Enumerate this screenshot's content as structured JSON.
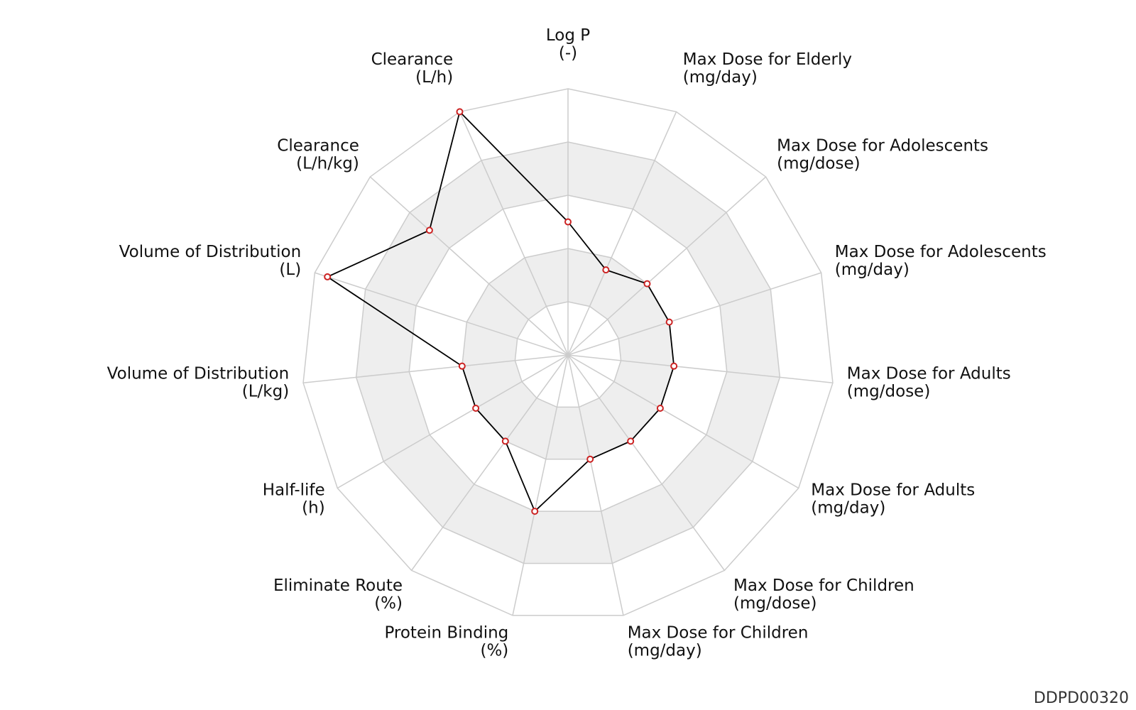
{
  "chart_data": {
    "type": "radar",
    "rings": 5,
    "band_colors": [
      "#ffffff",
      "#eeeeee"
    ],
    "grid_color": "#cccccc",
    "line_color": "#000000",
    "marker_color": "#cc2222",
    "axes": [
      {
        "name": "Log P",
        "unit": "(-)",
        "value": 0.5
      },
      {
        "name": "Max Dose for Elderly",
        "unit": "(mg/day)",
        "value": 0.35
      },
      {
        "name": "Max Dose for Adolescents",
        "unit": "(mg/dose)",
        "value": 0.4
      },
      {
        "name": "Max Dose for Adolescents",
        "unit": "(mg/day)",
        "value": 0.4
      },
      {
        "name": "Max Dose for Adults",
        "unit": "(mg/dose)",
        "value": 0.4
      },
      {
        "name": "Max Dose for Adults",
        "unit": "(mg/day)",
        "value": 0.4
      },
      {
        "name": "Max Dose for Children",
        "unit": "(mg/dose)",
        "value": 0.4
      },
      {
        "name": "Max Dose for Children",
        "unit": "(mg/day)",
        "value": 0.4
      },
      {
        "name": "Protein Binding",
        "unit": "(%)",
        "value": 0.6
      },
      {
        "name": "Eliminate Route",
        "unit": "(%)",
        "value": 0.4
      },
      {
        "name": "Half-life",
        "unit": "(h)",
        "value": 0.4
      },
      {
        "name": "Volume of Distribution",
        "unit": "(L/kg)",
        "value": 0.4
      },
      {
        "name": "Volume of Distribution",
        "unit": "(L)",
        "value": 0.95
      },
      {
        "name": "Clearance",
        "unit": "(L/h/kg)",
        "value": 0.7
      },
      {
        "name": "Clearance",
        "unit": "(L/h)",
        "value": 1.0
      }
    ]
  },
  "watermark": "DDPD00320"
}
